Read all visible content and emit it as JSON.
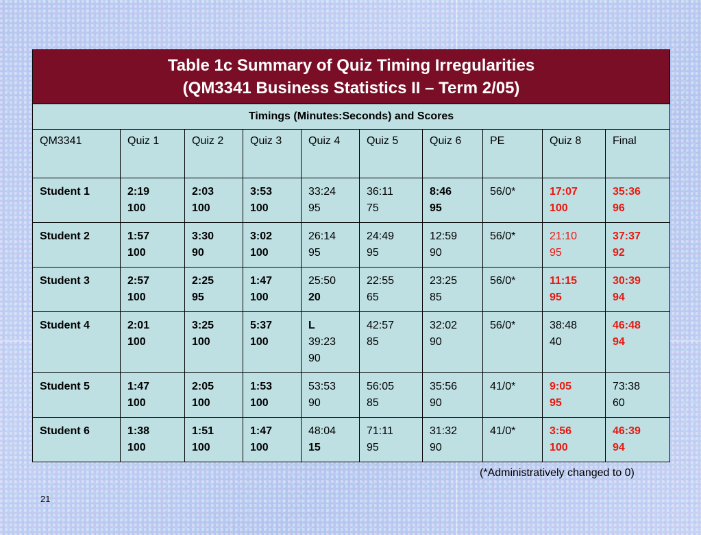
{
  "table": {
    "title_line1": "Table 1c  Summary of Quiz Timing Irregularities",
    "title_line2": "(QM3341 Business Statistics II – Term 2/05)",
    "subtitle": "Timings (Minutes:Seconds) and Scores",
    "headers": [
      "QM3341",
      "Quiz 1",
      "Quiz 2",
      "Quiz 3",
      "Quiz 4",
      "Quiz 5",
      "Quiz 6",
      "PE",
      "Quiz 8",
      "Final"
    ],
    "rows": [
      {
        "student": "Student 1",
        "cells": [
          {
            "lines": [
              "2:19",
              "100"
            ],
            "style": "bold"
          },
          {
            "lines": [
              "2:03",
              "100"
            ],
            "style": "bold"
          },
          {
            "lines": [
              "3:53",
              "100"
            ],
            "style": "bold"
          },
          {
            "lines": [
              "33:24",
              "95"
            ],
            "style": "normal"
          },
          {
            "lines": [
              "36:11",
              "75"
            ],
            "style": "normal"
          },
          {
            "lines": [
              "8:46",
              "95"
            ],
            "style": "bold"
          },
          {
            "lines": [
              "56/0*"
            ],
            "style": "normal"
          },
          {
            "lines": [
              "17:07",
              "100"
            ],
            "style": "bold-red"
          },
          {
            "lines": [
              "35:36",
              "96"
            ],
            "style": "bold-red"
          }
        ]
      },
      {
        "student": "Student 2",
        "cells": [
          {
            "lines": [
              "1:57",
              "100"
            ],
            "style": "bold"
          },
          {
            "lines": [
              "3:30",
              "90"
            ],
            "style": "bold"
          },
          {
            "lines": [
              "3:02",
              "100"
            ],
            "style": "bold"
          },
          {
            "lines": [
              "26:14",
              "95"
            ],
            "style": "normal"
          },
          {
            "lines": [
              "24:49",
              "95"
            ],
            "style": "normal"
          },
          {
            "lines": [
              "12:59",
              "90"
            ],
            "style": "normal"
          },
          {
            "lines": [
              "56/0*"
            ],
            "style": "normal"
          },
          {
            "lines": [
              "21:10",
              "95"
            ],
            "style": "red"
          },
          {
            "lines": [
              "37:37",
              "92"
            ],
            "style": "bold-red"
          }
        ]
      },
      {
        "student": "Student 3",
        "cells": [
          {
            "lines": [
              "2:57",
              "100"
            ],
            "style": "bold"
          },
          {
            "lines": [
              "2:25",
              "95"
            ],
            "style": "bold"
          },
          {
            "lines": [
              "1:47",
              "100"
            ],
            "style": "bold"
          },
          {
            "lines": [
              "25:50",
              "20"
            ],
            "style": "normal",
            "bold_lines": [
              1
            ]
          },
          {
            "lines": [
              "22:55",
              "65"
            ],
            "style": "normal"
          },
          {
            "lines": [
              "23:25",
              "85"
            ],
            "style": "normal"
          },
          {
            "lines": [
              "56/0*"
            ],
            "style": "normal"
          },
          {
            "lines": [
              "11:15",
              "95"
            ],
            "style": "bold-red"
          },
          {
            "lines": [
              "30:39",
              "94"
            ],
            "style": "bold-red"
          }
        ]
      },
      {
        "student": "Student 4",
        "tall": true,
        "cells": [
          {
            "lines": [
              "2:01",
              "100"
            ],
            "style": "bold"
          },
          {
            "lines": [
              "3:25",
              "100"
            ],
            "style": "bold"
          },
          {
            "lines": [
              "5:37",
              "100"
            ],
            "style": "bold"
          },
          {
            "lines": [
              "L",
              "39:23",
              "90"
            ],
            "style": "normal",
            "bold_lines": [
              0
            ]
          },
          {
            "lines": [
              "42:57",
              "85"
            ],
            "style": "normal"
          },
          {
            "lines": [
              "32:02",
              "90"
            ],
            "style": "normal"
          },
          {
            "lines": [
              "56/0*"
            ],
            "style": "normal"
          },
          {
            "lines": [
              "38:48",
              "40"
            ],
            "style": "normal"
          },
          {
            "lines": [
              "46:48",
              "94"
            ],
            "style": "bold-red"
          }
        ]
      },
      {
        "student": "Student 5",
        "cells": [
          {
            "lines": [
              "1:47",
              "100"
            ],
            "style": "bold"
          },
          {
            "lines": [
              "2:05",
              "100"
            ],
            "style": "bold"
          },
          {
            "lines": [
              "1:53",
              "100"
            ],
            "style": "bold"
          },
          {
            "lines": [
              "53:53",
              "90"
            ],
            "style": "normal"
          },
          {
            "lines": [
              "56:05",
              "85"
            ],
            "style": "normal"
          },
          {
            "lines": [
              "35:56",
              "90"
            ],
            "style": "normal"
          },
          {
            "lines": [
              "41/0*"
            ],
            "style": "normal"
          },
          {
            "lines": [
              "9:05",
              "95"
            ],
            "style": "bold-red"
          },
          {
            "lines": [
              "73:38",
              "60"
            ],
            "style": "normal"
          }
        ]
      },
      {
        "student": "Student 6",
        "cells": [
          {
            "lines": [
              "1:38",
              "100"
            ],
            "style": "bold"
          },
          {
            "lines": [
              "1:51",
              "100"
            ],
            "style": "bold"
          },
          {
            "lines": [
              "1:47",
              "100"
            ],
            "style": "bold"
          },
          {
            "lines": [
              "48:04",
              "15"
            ],
            "style": "normal",
            "bold_lines": [
              1
            ]
          },
          {
            "lines": [
              "71:11",
              "95"
            ],
            "style": "normal"
          },
          {
            "lines": [
              "31:32",
              "90"
            ],
            "style": "normal"
          },
          {
            "lines": [
              "41/0*"
            ],
            "style": "normal"
          },
          {
            "lines": [
              "3:56",
              "100"
            ],
            "style": "bold-red"
          },
          {
            "lines": [
              "46:39",
              "94"
            ],
            "style": "bold-red"
          }
        ]
      }
    ]
  },
  "footnote": "(*Administratively changed to 0)",
  "slide_number": "21",
  "colors": {
    "title_bg": "#7b0e27",
    "cell_bg": "#bfe0e3",
    "highlight": "#e8180e"
  }
}
